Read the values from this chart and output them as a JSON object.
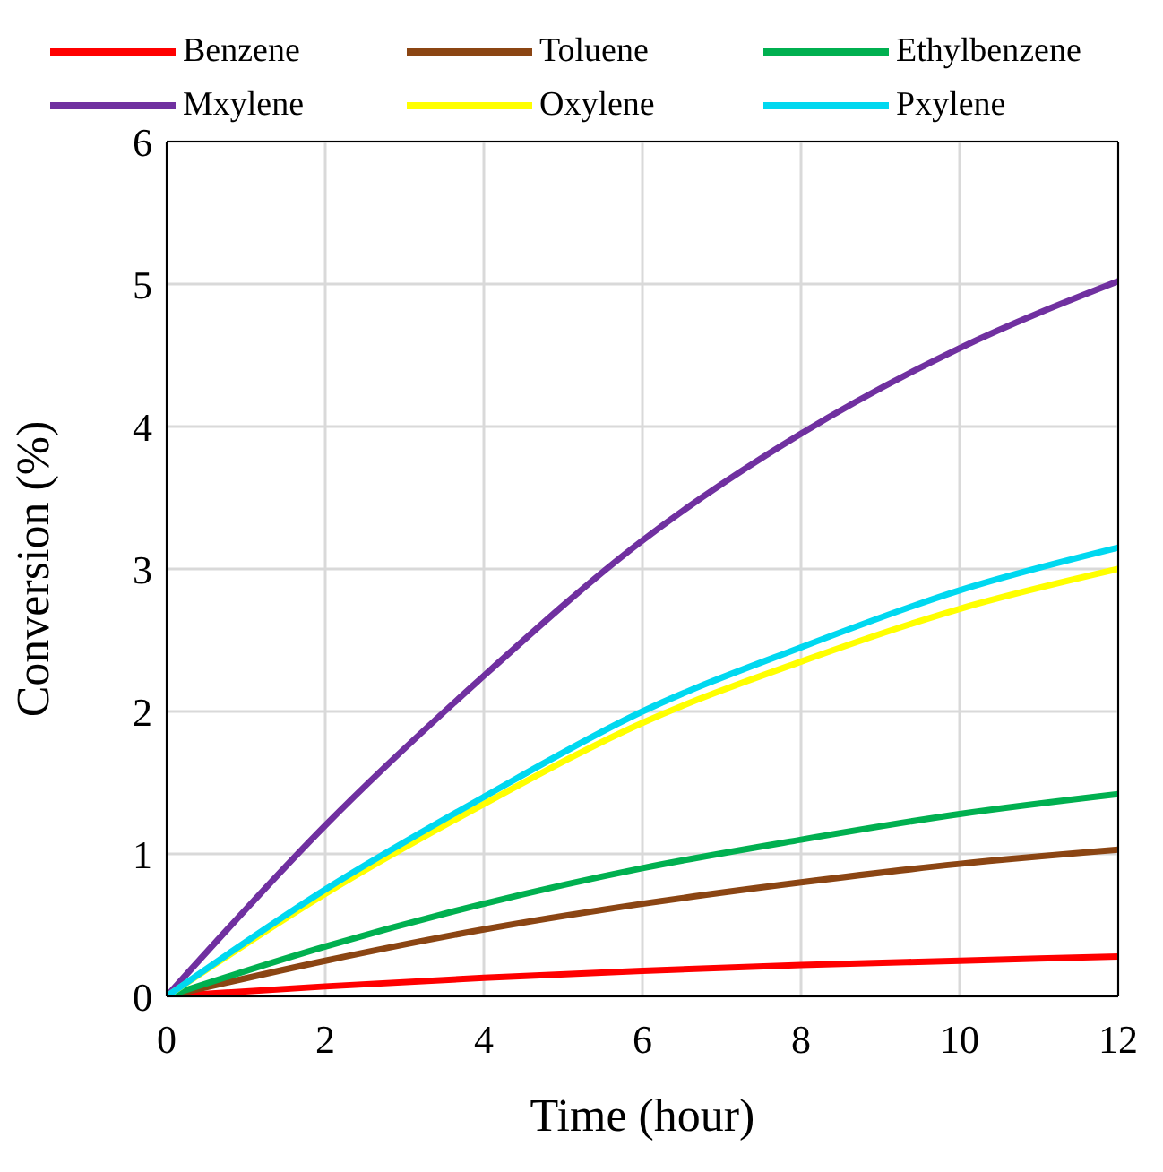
{
  "chart_data": {
    "type": "line",
    "xlabel": "Time (hour)",
    "ylabel": "Conversion (%)",
    "x": [
      0,
      2,
      4,
      6,
      8,
      10,
      12
    ],
    "series": [
      {
        "name": "Benzene",
        "color": "#ff0000",
        "values": [
          0,
          0.07,
          0.13,
          0.18,
          0.22,
          0.25,
          0.28
        ]
      },
      {
        "name": "Toluene",
        "color": "#8b4513",
        "values": [
          0,
          0.25,
          0.47,
          0.65,
          0.8,
          0.93,
          1.03
        ]
      },
      {
        "name": "Ethylbenzene",
        "color": "#00b050",
        "values": [
          0,
          0.35,
          0.65,
          0.9,
          1.1,
          1.28,
          1.42
        ]
      },
      {
        "name": "Mxylene",
        "color": "#7030a0",
        "values": [
          0,
          1.2,
          2.25,
          3.2,
          3.95,
          4.55,
          5.02
        ]
      },
      {
        "name": "Oxylene",
        "color": "#ffff00",
        "values": [
          0,
          0.72,
          1.35,
          1.92,
          2.35,
          2.72,
          3.0
        ]
      },
      {
        "name": "Pxylene",
        "color": "#00d8f0",
        "values": [
          0,
          0.75,
          1.4,
          2.0,
          2.45,
          2.85,
          3.15
        ]
      }
    ],
    "xlim": [
      0,
      12
    ],
    "xticks": [
      0,
      2,
      4,
      6,
      8,
      10,
      12
    ],
    "ylim": [
      0,
      6
    ],
    "yticks": [
      0,
      1,
      2,
      3,
      4,
      5,
      6
    ],
    "grid": true,
    "legend": "top",
    "marker": "none",
    "line_style": "solid"
  }
}
